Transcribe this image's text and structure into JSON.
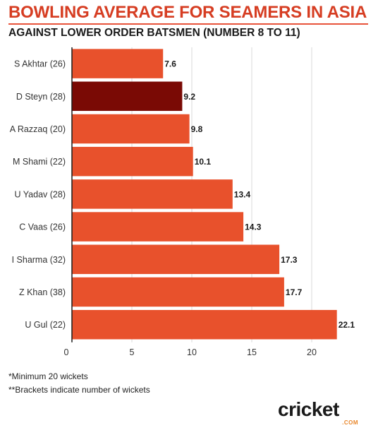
{
  "header": {
    "title": "BOWLING AVERAGE FOR SEAMERS IN ASIA",
    "subtitle": "AGAINST LOWER ORDER BATSMEN (NUMBER 8 TO 11)"
  },
  "notes": {
    "line1": "*Minimum 20 wickets",
    "line2": "**Brackets indicate number of wickets"
  },
  "logo": {
    "text": "cricket",
    "suffix": ".COM"
  },
  "colors": {
    "bar": "#e8512c",
    "highlight": "#7a0a05",
    "title": "#d63d22",
    "grid": "#d9d9d9"
  },
  "chart_data": {
    "type": "bar",
    "orientation": "horizontal",
    "categories": [
      "S Akhtar (26)",
      "D Steyn (28)",
      "A Razzaq (20)",
      "M Shami (22)",
      "U Yadav (28)",
      "C Vaas (26)",
      "I Sharma (32)",
      "Z Khan (38)",
      "U Gul (22)"
    ],
    "values": [
      7.6,
      9.2,
      9.8,
      10.1,
      13.4,
      14.3,
      17.3,
      17.7,
      22.1
    ],
    "highlighted": [
      "D Steyn (28)"
    ],
    "xlim": [
      0,
      25
    ],
    "xticks": [
      0,
      5,
      10,
      15,
      20
    ],
    "xlabel": "",
    "ylabel": "",
    "grid": true,
    "data_labels": true
  }
}
